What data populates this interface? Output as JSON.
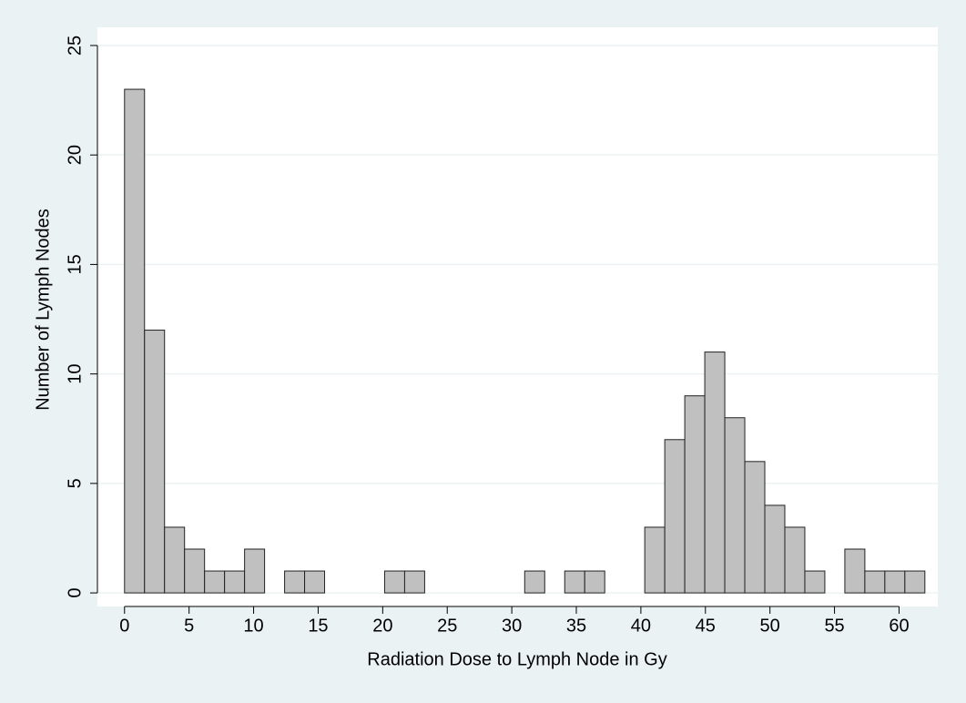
{
  "chart_data": {
    "type": "histogram",
    "x_label": "Radiation Dose to Lymph Node in Gy",
    "y_label": "Number of Lymph Nodes",
    "bins": [
      0,
      1.55,
      3.1,
      4.65,
      6.2,
      7.75,
      9.3,
      10.85,
      12.4,
      13.95,
      15.5,
      17.05,
      18.6,
      20.15,
      21.7,
      23.25,
      24.8,
      26.35,
      27.9,
      29.45,
      31,
      32.55,
      34.1,
      35.65,
      37.2,
      38.75,
      40.3,
      41.85,
      43.4,
      44.95,
      46.5,
      48.05,
      49.6,
      51.15,
      52.7,
      54.25,
      55.8,
      57.35,
      58.9,
      60.45,
      62
    ],
    "values": [
      23,
      12,
      3,
      2,
      1,
      1,
      2,
      0,
      1,
      1,
      0,
      0,
      0,
      1,
      1,
      0,
      0,
      0,
      0,
      0,
      1,
      0,
      1,
      1,
      0,
      0,
      3,
      7,
      9,
      11,
      8,
      6,
      4,
      3,
      1,
      0,
      2,
      1,
      1,
      1
    ],
    "color": "#c0c0c0",
    "xlim": [
      -2.1,
      63
    ],
    "xticks": [
      0,
      5,
      10,
      15,
      20,
      25,
      30,
      35,
      40,
      45,
      50,
      55,
      60
    ],
    "ylim": [
      -0.62,
      25.83
    ],
    "yticks": [
      0,
      5,
      10,
      15,
      20,
      25
    ],
    "grid": true
  }
}
